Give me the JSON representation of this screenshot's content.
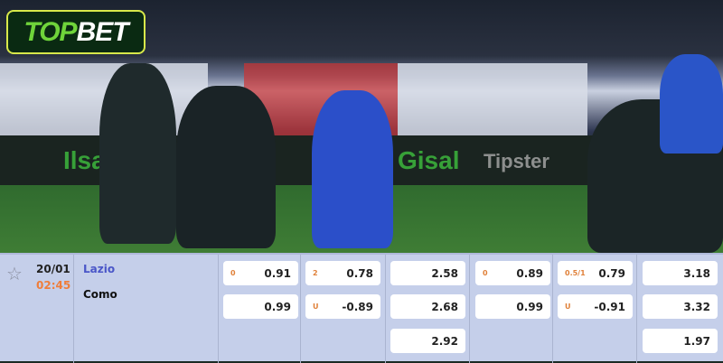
{
  "brand": {
    "logo_top": "TOP",
    "logo_bet": "BET",
    "accent": "#6fd43a"
  },
  "match": {
    "date": "20/01",
    "time": "02:45",
    "home": "Lazio",
    "away": "Como",
    "home_color": "#4a56c8",
    "time_color": "#ef7d3a"
  },
  "odds": [
    {
      "cells": [
        {
          "label": "0",
          "value": "0.91"
        },
        {
          "label": "",
          "value": "0.99"
        }
      ]
    },
    {
      "cells": [
        {
          "label": "2",
          "value": "0.78"
        },
        {
          "label": "U",
          "value": "-0.89"
        }
      ]
    },
    {
      "cells": [
        {
          "label": "",
          "value": "2.58"
        },
        {
          "label": "",
          "value": "2.68"
        },
        {
          "label": "",
          "value": "2.92"
        }
      ]
    },
    {
      "cells": [
        {
          "label": "0",
          "value": "0.89"
        },
        {
          "label": "",
          "value": "0.99"
        }
      ]
    },
    {
      "cells": [
        {
          "label": "0.5/1",
          "value": "0.79"
        },
        {
          "label": "U",
          "value": "-0.91"
        }
      ]
    },
    {
      "cells": [
        {
          "label": "",
          "value": "3.18"
        },
        {
          "label": "",
          "value": "3.32"
        },
        {
          "label": "",
          "value": "1.97"
        }
      ]
    }
  ]
}
